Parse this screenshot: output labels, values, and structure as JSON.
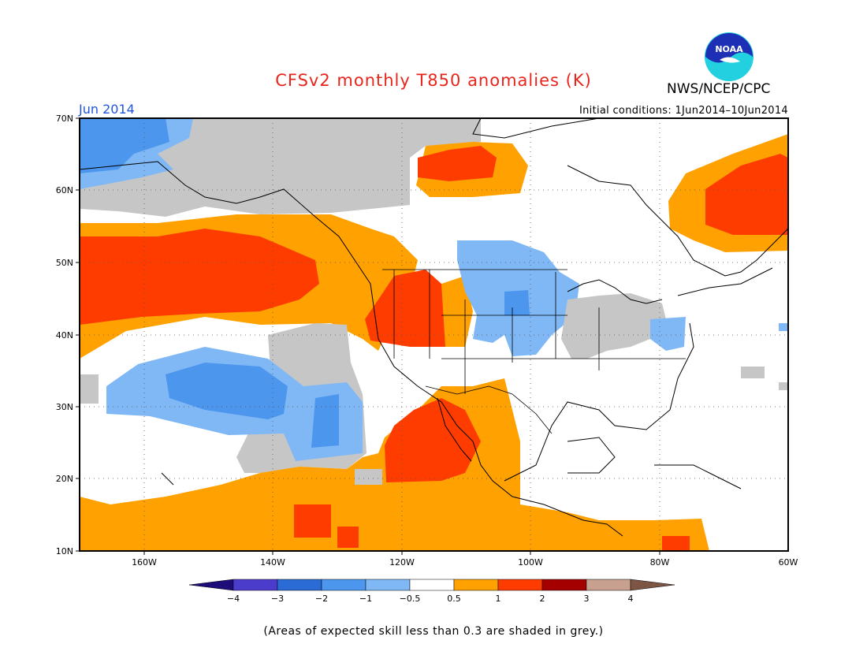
{
  "header": {
    "title": "CFSv2 monthly T850 anomalies (K)",
    "title_color": "#e8251c",
    "agency": "NWS/NCEP/CPC",
    "logo_text": "NOAA",
    "period": "Jun 2014",
    "period_color": "#2255dd",
    "initial_conditions": "Initial conditions: 1Jun2014–10Jun2014"
  },
  "map": {
    "projection": "lat-lon",
    "lon_range": [
      -170,
      -60
    ],
    "lat_range": [
      10,
      70
    ],
    "gridlines": "dotted",
    "lat_ticks": [
      "70N",
      "60N",
      "50N",
      "40N",
      "30N",
      "20N",
      "10N"
    ],
    "lon_ticks": [
      "160W",
      "140W",
      "120W",
      "100W",
      "80W",
      "60W"
    ]
  },
  "colorbar": {
    "labels": [
      "−4",
      "−3",
      "−2",
      "−1",
      "−0.5",
      "0.5",
      "1",
      "2",
      "3",
      "4"
    ],
    "colors": [
      "#1e0c78",
      "#4b3ccc",
      "#2a6bd6",
      "#4c96ee",
      "#7fb8f4",
      "#ffffff",
      "#ffa100",
      "#ff3c00",
      "#a50000",
      "#c7a08f",
      "#7d5545"
    ]
  },
  "legend_colors": {
    "grey_skill": "#c6c6c6",
    "blue_mid": "#4c96ee",
    "blue_light": "#7fb8f4",
    "blue_strong": "#2a6bd6",
    "orange": "#ffa100",
    "red": "#ff3c00"
  },
  "footnote": "(Areas of expected skill less than 0.3 are shaded in grey.)"
}
